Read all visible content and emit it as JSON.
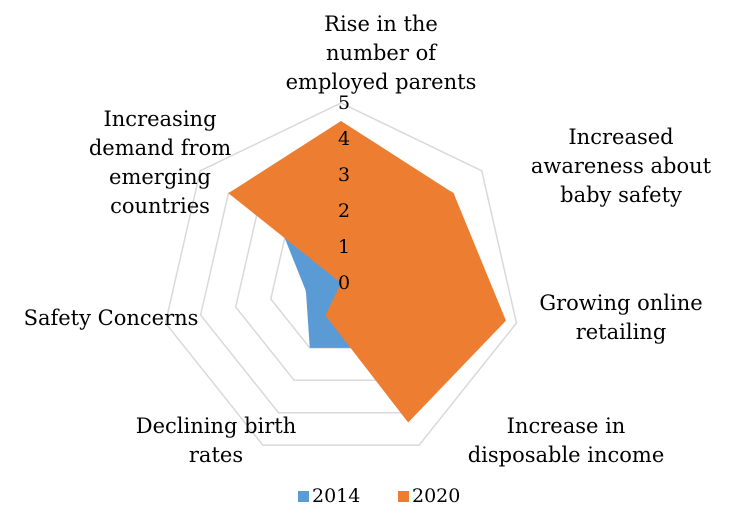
{
  "chart_data": {
    "type": "radar",
    "categories": [
      "Rise in the number of employed parents",
      "Increased awareness about baby safety",
      "Growing online retailing",
      "Increase in disposable income",
      "Declining birth rates",
      "Safety Concerns",
      "Increasing demand from emerging countries"
    ],
    "category_lines": [
      [
        "Rise in the",
        "number of",
        "employed parents"
      ],
      [
        "Increased",
        "awareness about",
        "baby safety"
      ],
      [
        "Growing online",
        "retailing"
      ],
      [
        "Increase in",
        "disposable income"
      ],
      [
        "Declining birth",
        "rates"
      ],
      [
        "Safety Concerns"
      ],
      [
        "Increasing",
        "demand from",
        "emerging",
        "countries"
      ]
    ],
    "rlim": [
      0,
      5
    ],
    "ticks": [
      "0",
      "1",
      "2",
      "3",
      "4",
      "5"
    ],
    "series": [
      {
        "name": "2014",
        "color": "#5b9bd5",
        "values": [
          1,
          1,
          1,
          2,
          2,
          1,
          2
        ]
      },
      {
        "name": "2020",
        "color": "#ed7d31",
        "values": [
          4.5,
          4,
          4.7,
          4.3,
          1,
          0,
          4
        ]
      }
    ],
    "grid": true,
    "legend": "bottom"
  }
}
